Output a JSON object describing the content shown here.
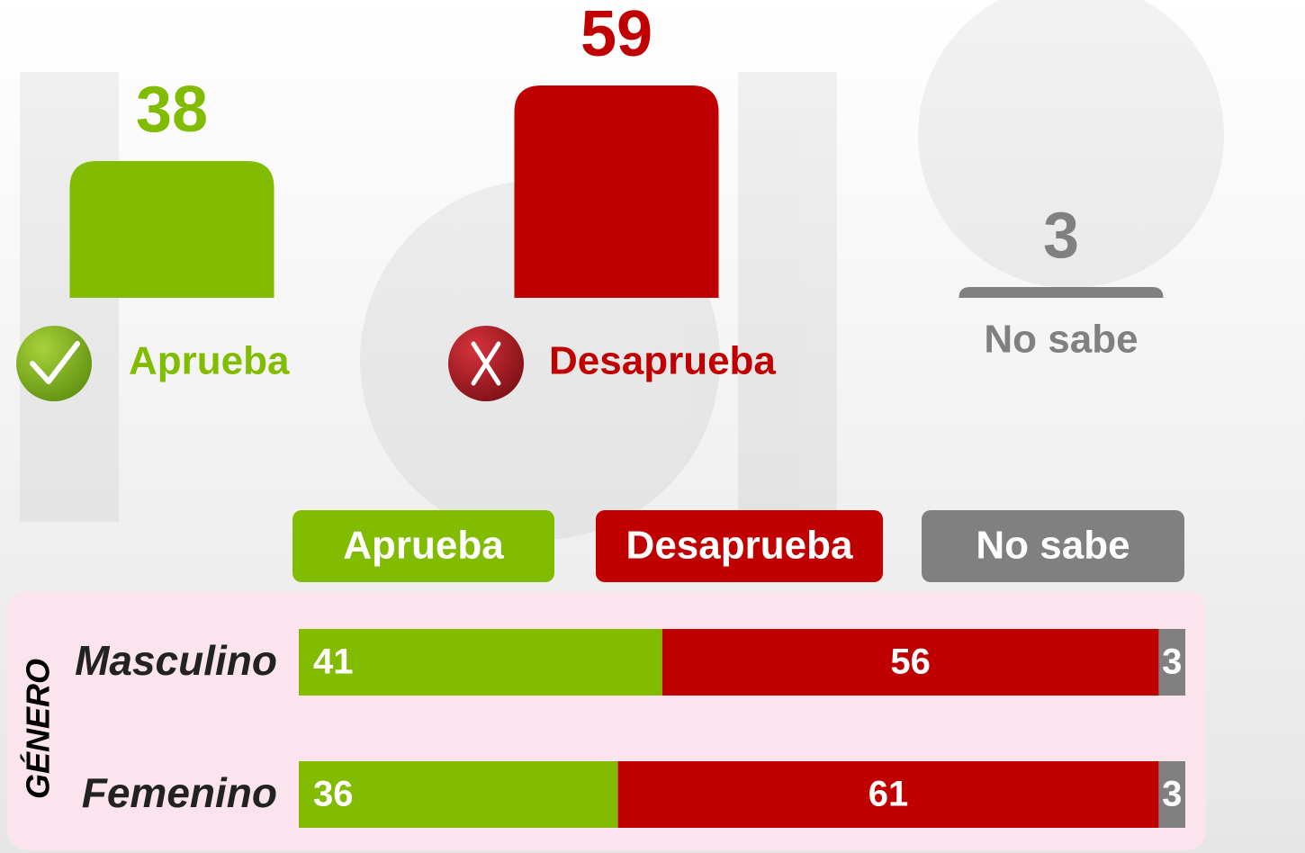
{
  "chart_data": [
    {
      "type": "bar",
      "categories": [
        "Aprueba",
        "Desaprueba",
        "No sabe"
      ],
      "values": [
        38,
        59,
        3
      ],
      "colors": [
        "#82bc00",
        "#c00000",
        "#808080"
      ]
    },
    {
      "type": "stacked-bar",
      "ylabel": "GÉNERO",
      "categories": [
        "Masculino",
        "Femenino"
      ],
      "series": [
        {
          "name": "Aprueba",
          "color": "#82bc00",
          "values": [
            41,
            36
          ]
        },
        {
          "name": "Desaprueba",
          "color": "#c00000",
          "values": [
            56,
            61
          ]
        },
        {
          "name": "No sabe",
          "color": "#808080",
          "values": [
            3,
            3
          ]
        }
      ]
    }
  ]
}
